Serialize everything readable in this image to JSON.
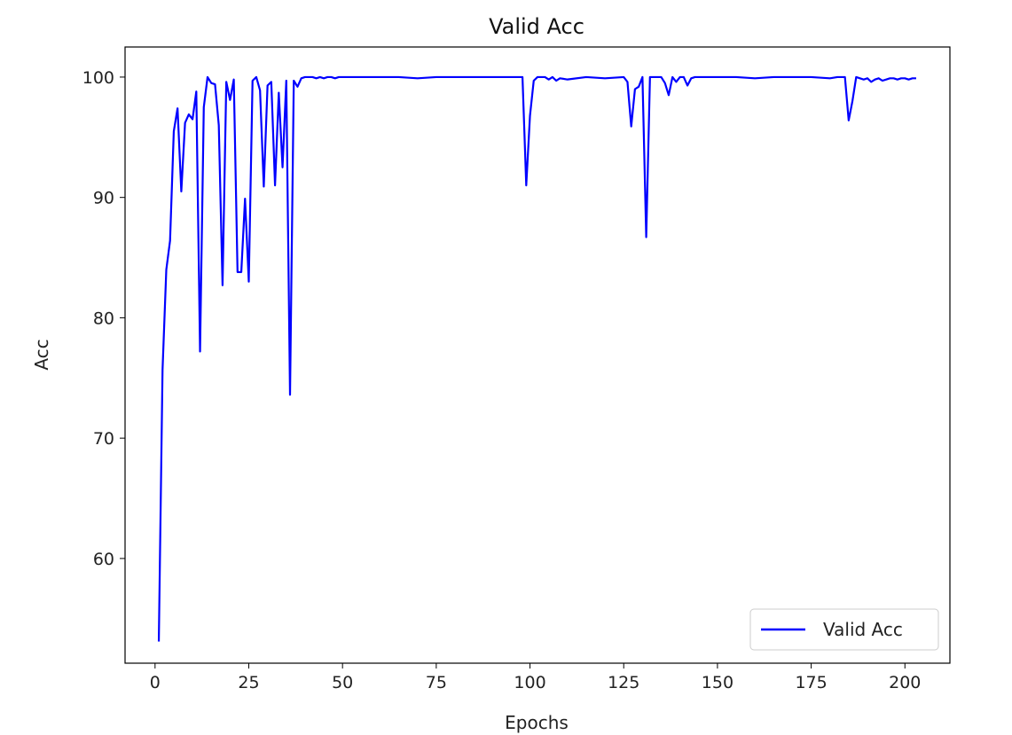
{
  "chart_data": {
    "type": "line",
    "title": "Valid Acc",
    "xlabel": "Epochs",
    "ylabel": "Acc",
    "xlim": [
      -8,
      212
    ],
    "ylim": [
      51.3,
      102.5
    ],
    "xticks": [
      0,
      25,
      50,
      75,
      100,
      125,
      150,
      175,
      200
    ],
    "yticks": [
      60,
      70,
      80,
      90,
      100
    ],
    "xtick_labels": [
      "0",
      "25",
      "50",
      "75",
      "100",
      "125",
      "150",
      "175",
      "200"
    ],
    "ytick_labels": [
      "60",
      "70",
      "80",
      "90",
      "100"
    ],
    "legend": {
      "position": "lower-right",
      "entries": [
        "Valid Acc"
      ]
    },
    "series": [
      {
        "name": "Valid Acc",
        "color": "#0000ff",
        "x": [
          1,
          2,
          3,
          4,
          5,
          6,
          7,
          8,
          9,
          10,
          11,
          12,
          13,
          14,
          15,
          16,
          17,
          18,
          19,
          20,
          21,
          22,
          23,
          24,
          25,
          26,
          27,
          28,
          29,
          30,
          31,
          32,
          33,
          34,
          35,
          36,
          37,
          38,
          39,
          40,
          41,
          42,
          43,
          44,
          45,
          46,
          47,
          48,
          49,
          50,
          55,
          60,
          65,
          70,
          75,
          80,
          85,
          90,
          95,
          96,
          97,
          98,
          99,
          100,
          101,
          102,
          103,
          104,
          105,
          106,
          107,
          108,
          110,
          115,
          120,
          125,
          126,
          127,
          128,
          129,
          130,
          131,
          132,
          133,
          134,
          135,
          136,
          137,
          138,
          139,
          140,
          141,
          142,
          143,
          144,
          145,
          150,
          155,
          160,
          165,
          170,
          175,
          180,
          182,
          183,
          184,
          185,
          186,
          187,
          188,
          189,
          190,
          191,
          192,
          193,
          194,
          195,
          196,
          197,
          198,
          199,
          200,
          201,
          202,
          203
        ],
        "values": [
          53.1,
          75.7,
          84.0,
          86.4,
          95.5,
          97.4,
          90.5,
          96.2,
          96.9,
          96.5,
          98.8,
          77.2,
          97.5,
          100.0,
          99.5,
          99.4,
          96.0,
          82.7,
          99.6,
          98.1,
          99.8,
          83.8,
          83.8,
          89.9,
          83.0,
          99.7,
          100.0,
          98.9,
          90.9,
          99.3,
          99.6,
          91.0,
          98.7,
          92.5,
          99.7,
          73.6,
          99.7,
          99.2,
          99.9,
          100.0,
          100.0,
          100.0,
          99.9,
          100.0,
          99.9,
          100.0,
          100.0,
          99.9,
          100.0,
          100.0,
          100.0,
          100.0,
          100.0,
          99.9,
          100.0,
          100.0,
          100.0,
          100.0,
          100.0,
          100.0,
          100.0,
          100.0,
          91.0,
          96.8,
          99.7,
          100.0,
          100.0,
          100.0,
          99.8,
          100.0,
          99.7,
          99.9,
          99.8,
          100.0,
          99.9,
          100.0,
          99.6,
          95.9,
          99.0,
          99.2,
          100.0,
          86.7,
          100.0,
          100.0,
          100.0,
          100.0,
          99.5,
          98.5,
          100.0,
          99.6,
          100.0,
          100.0,
          99.3,
          99.9,
          100.0,
          100.0,
          100.0,
          100.0,
          99.9,
          100.0,
          100.0,
          100.0,
          99.9,
          100.0,
          100.0,
          100.0,
          96.4,
          98.0,
          100.0,
          99.9,
          99.8,
          99.9,
          99.6,
          99.8,
          99.9,
          99.7,
          99.8,
          99.9,
          99.9,
          99.8,
          99.9,
          99.9,
          99.8,
          99.9,
          99.9
        ]
      }
    ]
  }
}
